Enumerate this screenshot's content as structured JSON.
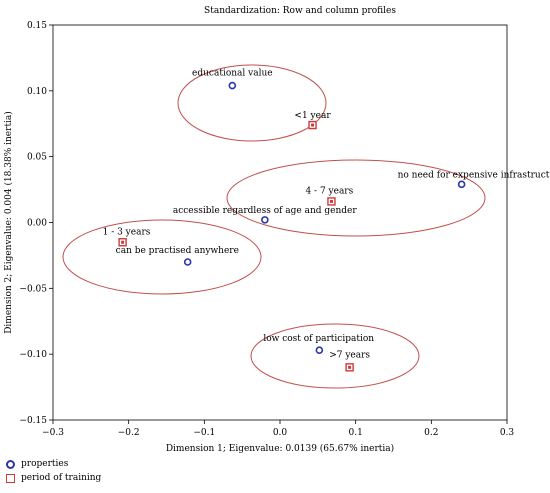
{
  "chart_data": {
    "type": "scatter",
    "title": "Standardization: Row and column profiles",
    "xlabel": "Dimension 1; Eigenvalue: 0.0139 (65.67% inertia)",
    "ylabel": "Dimension 2; Eigenvalue: 0.004 (18.38% inertia)",
    "xlim": [
      -0.3,
      0.3
    ],
    "ylim": [
      -0.15,
      0.15
    ],
    "xticks": [
      -0.3,
      -0.2,
      -0.1,
      0.0,
      0.1,
      0.2,
      0.3
    ],
    "yticks": [
      -0.15,
      -0.1,
      -0.05,
      0.0,
      0.05,
      0.1,
      0.15
    ],
    "xtick_labels": [
      "−0.3",
      "−0.2",
      "−0.1",
      "0.0",
      "0.1",
      "0.2",
      "0.3"
    ],
    "ytick_labels": [
      "−0.15",
      "−0.10",
      "−0.05",
      "0.00",
      "0.05",
      "0.10",
      "0.15"
    ],
    "grid": false,
    "legend_position": "bottom-left",
    "series": [
      {
        "name": "properties",
        "marker": "circle",
        "color": "#2a35a8",
        "points": [
          {
            "label": "educational value",
            "x": -0.063,
            "y": 0.104
          },
          {
            "label": "no need for expensive infrastructure",
            "x": 0.24,
            "y": 0.029
          },
          {
            "label": "accessible regardless of age and gender",
            "x": -0.02,
            "y": 0.002
          },
          {
            "label": "can be practised anywhere",
            "x": -0.122,
            "y": -0.03
          },
          {
            "label": "low cost of participation",
            "x": 0.052,
            "y": -0.097
          }
        ]
      },
      {
        "name": "period of training",
        "marker": "square",
        "color": "#cc3a3a",
        "points": [
          {
            "label": "<1 year",
            "x": 0.043,
            "y": 0.074
          },
          {
            "label": "4 - 7 years",
            "x": 0.068,
            "y": 0.016
          },
          {
            "label": "1 - 3 years",
            "x": -0.208,
            "y": -0.015
          },
          {
            "label": ">7 years",
            "x": 0.092,
            "y": -0.11
          }
        ]
      }
    ],
    "ellipse_color": "#c0504d"
  }
}
